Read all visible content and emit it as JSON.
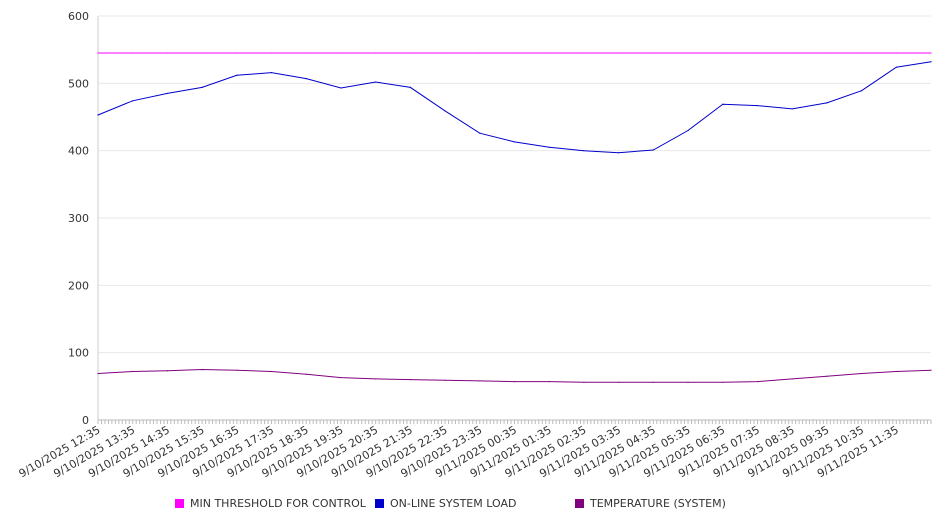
{
  "chart_data": {
    "type": "line",
    "title": "",
    "xlabel": "",
    "ylabel": "",
    "ylim": [
      0,
      600
    ],
    "y_ticks": [
      "0",
      "100",
      "200",
      "300",
      "400",
      "500",
      "600"
    ],
    "y_tick_values": [
      0,
      100,
      200,
      300,
      400,
      500,
      600
    ],
    "x_tick_labels": [
      "9/10/2025 12:35",
      "9/10/2025 13:35",
      "9/10/2025 14:35",
      "9/10/2025 15:35",
      "9/10/2025 16:35",
      "9/10/2025 17:35",
      "9/10/2025 18:35",
      "9/10/2025 19:35",
      "9/10/2025 20:35",
      "9/10/2025 21:35",
      "9/10/2025 22:35",
      "9/10/2025 23:35",
      "9/11/2025 00:35",
      "9/11/2025 01:35",
      "9/11/2025 02:35",
      "9/11/2025 03:35",
      "9/11/2025 04:35",
      "9/11/2025 05:35",
      "9/11/2025 06:35",
      "9/11/2025 07:35",
      "9/11/2025 08:35",
      "9/11/2025 09:35",
      "9/11/2025 10:35",
      "9/11/2025 11:35"
    ],
    "x": [
      "9/10/2025 12:35",
      "9/10/2025 13:35",
      "9/10/2025 14:35",
      "9/10/2025 15:35",
      "9/10/2025 16:35",
      "9/10/2025 17:35",
      "9/10/2025 18:35",
      "9/10/2025 19:35",
      "9/10/2025 20:35",
      "9/10/2025 21:35",
      "9/10/2025 22:35",
      "9/10/2025 23:35",
      "9/11/2025 00:35",
      "9/11/2025 01:35",
      "9/11/2025 02:35",
      "9/11/2025 03:35",
      "9/11/2025 04:35",
      "9/11/2025 05:35",
      "9/11/2025 06:35",
      "9/11/2025 07:35",
      "9/11/2025 08:35",
      "9/11/2025 09:35",
      "9/11/2025 10:35",
      "9/11/2025 11:35",
      "9/11/2025 12:30"
    ],
    "series": [
      {
        "name": "MIN THRESHOLD FOR CONTROL",
        "color": "#ff00ff",
        "values": [
          545,
          545,
          545,
          545,
          545,
          545,
          545,
          545,
          545,
          545,
          545,
          545,
          545,
          545,
          545,
          545,
          545,
          545,
          545,
          545,
          545,
          545,
          545,
          545,
          545
        ]
      },
      {
        "name": "ON-LINE SYSTEM LOAD",
        "color": "#0000cc",
        "values": [
          453,
          474,
          485,
          494,
          512,
          516,
          507,
          493,
          502,
          494,
          459,
          426,
          413,
          405,
          400,
          397,
          401,
          430,
          469,
          467,
          462,
          471,
          489,
          524,
          532
        ]
      },
      {
        "name": "TEMPERATURE (SYSTEM)",
        "color": "#800080",
        "values": [
          69,
          72,
          73,
          75,
          74,
          72,
          68,
          63,
          61,
          60,
          59,
          58,
          57,
          57,
          56,
          56,
          56,
          56,
          56,
          57,
          61,
          65,
          69,
          72,
          74
        ]
      }
    ],
    "grid": true,
    "legend_position": "bottom"
  }
}
